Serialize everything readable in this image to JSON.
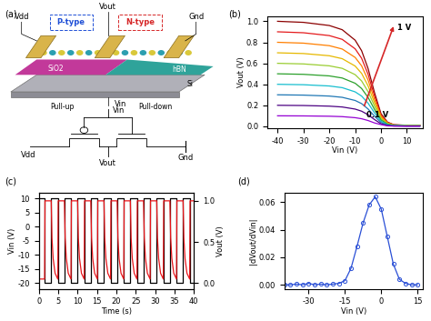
{
  "panel_labels": [
    "(a)",
    "(b)",
    "(c)",
    "(d)"
  ],
  "diagram": {
    "device": {
      "vdd": "Vdd",
      "vout": "Vout",
      "gnd": "Gnd",
      "p_type": "P-type",
      "n_type": "N-type",
      "sio2": "SiO2",
      "hbn": "hBN",
      "si": "Si",
      "vin": "Vin"
    },
    "circuit": {
      "pull_up": "Pull-up",
      "pull_down": "Pull-down",
      "vin": "Vin",
      "vdd": "Vdd",
      "vout": "Vout",
      "gnd": "Gnd"
    }
  },
  "chart_data": [
    {
      "type": "line",
      "x_label": "Vin (V)",
      "y_label": "Vout (V)",
      "annotations": [
        "1 V",
        "0.1 V"
      ],
      "x": [
        -40,
        -30,
        -20,
        -15,
        -10,
        -7.5,
        -5,
        -2.5,
        0,
        2.5,
        5,
        10,
        15
      ],
      "xlim": [
        -44,
        16
      ],
      "xticks": [
        -40,
        -30,
        -20,
        -10,
        0,
        10
      ],
      "ylim": [
        -0.02,
        1.05
      ],
      "yticks": [
        0.0,
        0.2,
        0.4,
        0.6,
        0.8,
        1.0
      ],
      "series": [
        {
          "color": "#8b0000",
          "values": [
            1.0,
            0.99,
            0.96,
            0.92,
            0.82,
            0.72,
            0.55,
            0.32,
            0.12,
            0.04,
            0.015,
            0.01,
            0.01
          ]
        },
        {
          "color": "#e41a1c",
          "values": [
            0.9,
            0.891,
            0.864,
            0.828,
            0.738,
            0.648,
            0.495,
            0.288,
            0.108,
            0.036,
            0.014,
            0.009,
            0.009
          ]
        },
        {
          "color": "#ff7f00",
          "values": [
            0.8,
            0.792,
            0.768,
            0.736,
            0.656,
            0.576,
            0.44,
            0.256,
            0.096,
            0.032,
            0.012,
            0.008,
            0.008
          ]
        },
        {
          "color": "#e6b800",
          "values": [
            0.7,
            0.693,
            0.672,
            0.644,
            0.574,
            0.504,
            0.385,
            0.224,
            0.084,
            0.028,
            0.011,
            0.007,
            0.007
          ]
        },
        {
          "color": "#9acd32",
          "values": [
            0.6,
            0.594,
            0.576,
            0.552,
            0.492,
            0.432,
            0.33,
            0.192,
            0.072,
            0.024,
            0.009,
            0.006,
            0.006
          ]
        },
        {
          "color": "#2ca02c",
          "values": [
            0.5,
            0.495,
            0.48,
            0.46,
            0.41,
            0.36,
            0.275,
            0.16,
            0.06,
            0.02,
            0.008,
            0.005,
            0.005
          ]
        },
        {
          "color": "#17becf",
          "values": [
            0.4,
            0.396,
            0.384,
            0.368,
            0.328,
            0.288,
            0.22,
            0.128,
            0.048,
            0.016,
            0.006,
            0.004,
            0.004
          ]
        },
        {
          "color": "#1f77b4",
          "values": [
            0.3,
            0.297,
            0.288,
            0.276,
            0.246,
            0.216,
            0.165,
            0.096,
            0.036,
            0.012,
            0.005,
            0.003,
            0.003
          ]
        },
        {
          "color": "#4b0082",
          "values": [
            0.2,
            0.198,
            0.192,
            0.184,
            0.164,
            0.144,
            0.11,
            0.064,
            0.024,
            0.008,
            0.003,
            0.002,
            0.002
          ]
        },
        {
          "color": "#9400d3",
          "values": [
            0.1,
            0.099,
            0.096,
            0.092,
            0.082,
            0.072,
            0.055,
            0.032,
            0.016,
            0.004,
            0.002,
            0.001,
            0.001
          ]
        }
      ]
    },
    {
      "type": "line",
      "x_label": "Time (s)",
      "y_label": "Vin (V)",
      "y2_label": "Vout (V)",
      "xlim": [
        0,
        40
      ],
      "xticks": [
        0,
        5,
        10,
        15,
        20,
        25,
        30,
        35,
        40
      ],
      "ylim": [
        -22,
        12
      ],
      "yticks": [
        -20,
        -15,
        -10,
        -5,
        0,
        5,
        10
      ],
      "y2lim": [
        -0.07,
        1.1
      ],
      "y2ticks": [
        0.0,
        0.5,
        1.0
      ],
      "series": [
        {
          "color": "#000000",
          "line_style": "steps",
          "x": [
            0,
            1.5,
            3.2,
            4.9,
            6.6,
            8.3,
            10.0,
            11.7,
            13.4,
            15.1,
            16.8,
            18.5,
            20.2,
            21.9,
            23.6,
            25.3,
            27.0,
            28.7,
            30.4,
            32.1,
            33.8,
            35.5,
            37.2,
            38.9,
            40
          ],
          "values": [
            10,
            -20,
            10,
            -20,
            10,
            -20,
            10,
            -20,
            10,
            -20,
            10,
            -20,
            10,
            -20,
            10,
            -20,
            10,
            -20,
            10,
            -20,
            10,
            -20,
            10,
            -20,
            -20
          ]
        },
        {
          "color": "#e8161b",
          "line_style": "solid",
          "axis": "y2",
          "x": [
            0,
            1.5,
            1.6,
            3.2,
            3.4,
            3.7,
            4.2,
            4.9,
            5.0,
            6.6,
            6.8,
            7.1,
            7.6,
            8.3,
            8.4,
            10.0,
            10.2,
            10.5,
            11.0,
            11.7,
            11.8,
            13.4,
            13.6,
            13.9,
            14.4,
            15.1,
            15.2,
            16.8,
            17.0,
            17.3,
            17.8,
            18.5,
            18.6,
            20.2,
            20.4,
            20.7,
            21.2,
            21.9,
            22.0,
            23.6,
            23.8,
            24.1,
            24.6,
            25.3,
            25.4,
            27.0,
            27.2,
            27.5,
            28.0,
            28.7,
            28.8,
            30.4,
            30.6,
            30.9,
            31.4,
            32.1,
            32.2,
            33.8,
            34.0,
            34.3,
            34.8,
            35.5,
            35.6,
            37.2,
            37.4,
            37.7,
            38.2,
            38.9,
            39.0,
            40.0
          ],
          "values": [
            0.05,
            0.05,
            1.0,
            1.0,
            0.55,
            0.3,
            0.12,
            0.05,
            1.0,
            1.0,
            0.55,
            0.3,
            0.12,
            0.05,
            1.0,
            1.0,
            0.55,
            0.3,
            0.12,
            0.05,
            1.0,
            1.0,
            0.55,
            0.3,
            0.12,
            0.05,
            1.0,
            1.0,
            0.55,
            0.3,
            0.12,
            0.05,
            1.0,
            1.0,
            0.55,
            0.3,
            0.12,
            0.05,
            1.0,
            1.0,
            0.55,
            0.3,
            0.12,
            0.05,
            1.0,
            1.0,
            0.55,
            0.3,
            0.12,
            0.05,
            1.0,
            1.0,
            0.55,
            0.3,
            0.12,
            0.05,
            1.0,
            1.0,
            0.55,
            0.3,
            0.12,
            0.05,
            1.0,
            1.0,
            0.55,
            0.3,
            0.12,
            0.05,
            1.0,
            1.0
          ]
        }
      ]
    },
    {
      "type": "line",
      "x_label": "Vin (V)",
      "y_label": "|dVout/dVin|",
      "color": "#2a4fd6",
      "marker": "o",
      "x": [
        -40,
        -37.5,
        -35,
        -32.5,
        -30,
        -27.5,
        -25,
        -22.5,
        -20,
        -17.5,
        -15,
        -12.5,
        -10,
        -7.5,
        -5,
        -2.5,
        0,
        2.5,
        5,
        7.5,
        10,
        12.5,
        15
      ],
      "values": [
        0.0,
        0.0,
        0.0005,
        0.0,
        0.001,
        0.0,
        0.0005,
        0.0,
        0.0005,
        0.001,
        0.003,
        0.012,
        0.028,
        0.045,
        0.058,
        0.064,
        0.055,
        0.035,
        0.015,
        0.004,
        0.001,
        0.0,
        0.0
      ],
      "xlim": [
        -40,
        17
      ],
      "xticks": [
        -30,
        -15,
        0,
        15
      ],
      "ylim": [
        -0.003,
        0.067
      ],
      "yticks": [
        {
          "value": 0.0,
          "label": "0.00"
        },
        {
          "value": 0.02,
          "label": "0.02"
        },
        {
          "value": 0.04,
          "label": "0.04"
        },
        {
          "value": 0.06,
          "label": "0.06"
        }
      ]
    }
  ]
}
